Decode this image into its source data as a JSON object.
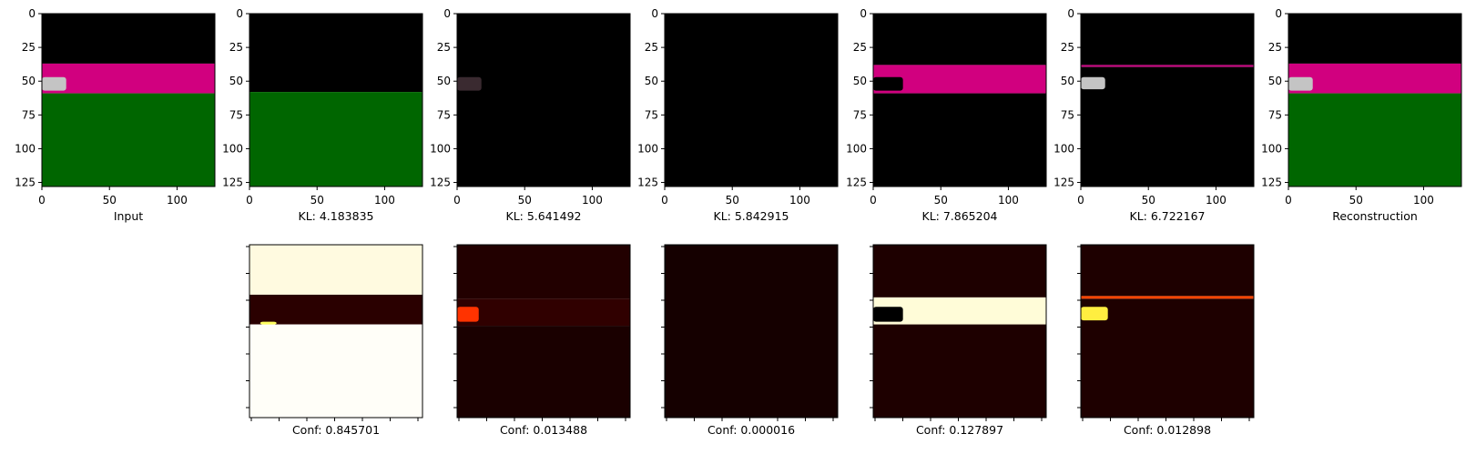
{
  "chart_data": [
    {
      "type": "heatmap",
      "xlabel": "Input",
      "xlim": [
        0,
        128
      ],
      "ylim": [
        128,
        0
      ],
      "xticks": [
        0,
        50,
        100
      ],
      "yticks": [
        0,
        25,
        50,
        75,
        100,
        125
      ],
      "bands": [
        {
          "from": 0,
          "to": 37,
          "color": "#000000"
        },
        {
          "from": 37,
          "to": 59,
          "color": "#d1007f"
        },
        {
          "from": 59,
          "to": 128,
          "color": "#006600"
        }
      ],
      "car": {
        "color": "#c4c4c4",
        "x": [
          0,
          18
        ],
        "y": [
          47,
          57
        ]
      }
    },
    {
      "type": "heatmap",
      "xlabel": "KL: 4.183835",
      "xlim": [
        0,
        128
      ],
      "ylim": [
        128,
        0
      ],
      "xticks": [
        0,
        50,
        100
      ],
      "yticks": [
        0,
        25,
        50,
        75,
        100,
        125
      ],
      "bands": [
        {
          "from": 0,
          "to": 58,
          "color": "#000000"
        },
        {
          "from": 58,
          "to": 128,
          "color": "#006600"
        }
      ]
    },
    {
      "type": "heatmap",
      "xlabel": "KL: 5.641492",
      "xlim": [
        0,
        128
      ],
      "ylim": [
        128,
        0
      ],
      "xticks": [
        0,
        50,
        100
      ],
      "yticks": [
        0,
        25,
        50,
        75,
        100,
        125
      ],
      "bands": [
        {
          "from": 0,
          "to": 128,
          "color": "#000000"
        }
      ],
      "car": {
        "color": "#3a2a30",
        "x": [
          0,
          18
        ],
        "y": [
          47,
          57
        ]
      }
    },
    {
      "type": "heatmap",
      "xlabel": "KL: 5.842915",
      "xlim": [
        0,
        128
      ],
      "ylim": [
        128,
        0
      ],
      "xticks": [
        0,
        50,
        100
      ],
      "yticks": [
        0,
        25,
        50,
        75,
        100,
        125
      ],
      "bands": [
        {
          "from": 0,
          "to": 128,
          "color": "#000000"
        }
      ]
    },
    {
      "type": "heatmap",
      "xlabel": "KL: 7.865204",
      "xlim": [
        0,
        128
      ],
      "ylim": [
        128,
        0
      ],
      "xticks": [
        0,
        50,
        100
      ],
      "yticks": [
        0,
        25,
        50,
        75,
        100,
        125
      ],
      "bands": [
        {
          "from": 0,
          "to": 38,
          "color": "#000000"
        },
        {
          "from": 38,
          "to": 59,
          "color": "#d1007f"
        },
        {
          "from": 59,
          "to": 128,
          "color": "#000000"
        }
      ],
      "car": {
        "color": "#000000",
        "x": [
          0,
          22
        ],
        "y": [
          47,
          57
        ]
      }
    },
    {
      "type": "heatmap",
      "xlabel": "KL: 6.722167",
      "xlim": [
        0,
        128
      ],
      "ylim": [
        128,
        0
      ],
      "xticks": [
        0,
        50,
        100
      ],
      "yticks": [
        0,
        25,
        50,
        75,
        100,
        125
      ],
      "bands": [
        {
          "from": 0,
          "to": 38,
          "color": "#000000"
        },
        {
          "from": 38,
          "to": 39.5,
          "color": "#c0007a"
        },
        {
          "from": 39.5,
          "to": 128,
          "color": "#000000"
        }
      ],
      "car": {
        "color": "#c4c4c4",
        "x": [
          0,
          18
        ],
        "y": [
          47,
          56
        ]
      }
    },
    {
      "type": "heatmap",
      "xlabel": "Reconstruction",
      "xlim": [
        0,
        128
      ],
      "ylim": [
        128,
        0
      ],
      "xticks": [
        0,
        50,
        100
      ],
      "yticks": [
        0,
        25,
        50,
        75,
        100,
        125
      ],
      "bands": [
        {
          "from": 0,
          "to": 37,
          "color": "#000000"
        },
        {
          "from": 37,
          "to": 59,
          "color": "#d1007f"
        },
        {
          "from": 59,
          "to": 128,
          "color": "#006600"
        }
      ],
      "car": {
        "color": "#c4c4c4",
        "x": [
          0,
          18
        ],
        "y": [
          47,
          57
        ]
      }
    },
    {
      "type": "heatmap",
      "colormap": "hot",
      "xlabel": "Conf: 0.845701",
      "bands": [
        {
          "from": 0,
          "to": 37,
          "color": "#fffae0"
        },
        {
          "from": 37,
          "to": 59,
          "color": "#2a0000"
        },
        {
          "from": 59,
          "to": 128,
          "color": "#fffef8"
        }
      ],
      "blob": {
        "color": "#ffff60",
        "x": [
          8,
          20
        ],
        "y": [
          57,
          59
        ]
      }
    },
    {
      "type": "heatmap",
      "colormap": "hot",
      "xlabel": "Conf: 0.013488",
      "bands": [
        {
          "from": 0,
          "to": 40,
          "color": "#220000"
        },
        {
          "from": 40,
          "to": 60,
          "color": "#300000"
        },
        {
          "from": 60,
          "to": 128,
          "color": "#1a0000"
        }
      ],
      "blob": {
        "color": "#ff3300",
        "x": [
          0,
          16
        ],
        "y": [
          46,
          57
        ]
      }
    },
    {
      "type": "heatmap",
      "colormap": "hot",
      "xlabel": "Conf: 0.000016",
      "bands": [
        {
          "from": 0,
          "to": 128,
          "color": "#150000"
        }
      ]
    },
    {
      "type": "heatmap",
      "colormap": "hot",
      "xlabel": "Conf: 0.127897",
      "bands": [
        {
          "from": 0,
          "to": 39,
          "color": "#1e0000"
        },
        {
          "from": 39,
          "to": 59,
          "color": "#fffcd8"
        },
        {
          "from": 59,
          "to": 128,
          "color": "#1e0000"
        }
      ],
      "blob": {
        "color": "#000000",
        "x": [
          0,
          22
        ],
        "y": [
          46,
          57
        ]
      }
    },
    {
      "type": "heatmap",
      "colormap": "hot",
      "xlabel": "Conf: 0.012898",
      "bands": [
        {
          "from": 0,
          "to": 38,
          "color": "#1e0000"
        },
        {
          "from": 38,
          "to": 40,
          "color": "#ff4400"
        },
        {
          "from": 40,
          "to": 128,
          "color": "#1e0000"
        }
      ],
      "blob": {
        "color": "#ffee40",
        "x": [
          0,
          20
        ],
        "y": [
          46,
          56
        ]
      }
    }
  ]
}
